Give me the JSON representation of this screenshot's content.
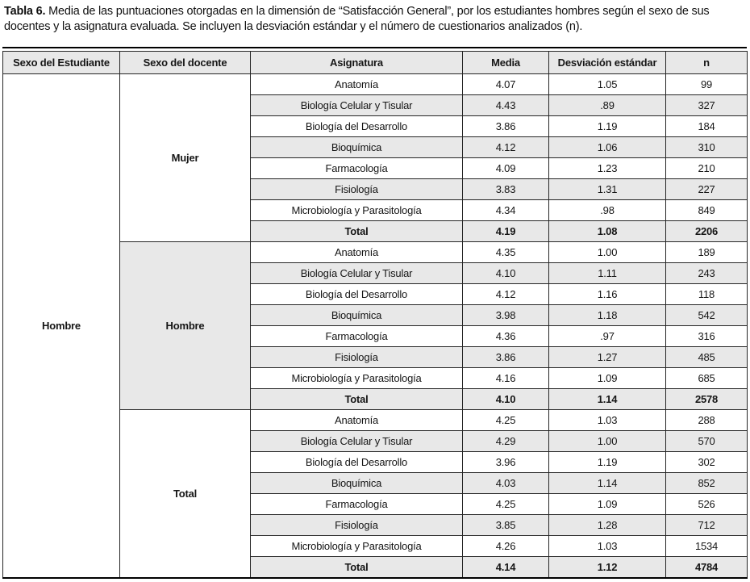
{
  "caption": {
    "label": "Tabla 6.",
    "text": " Media de las puntuaciones otorgadas en la dimensión de “Satisfacción General”, por los estudiantes hombres según el sexo de sus docentes y la asignatura evaluada. Se incluyen la desviación estándar y el número de cuestionarios analizados (n)."
  },
  "colors": {
    "shade": "#e8e8e8",
    "border": "#262626"
  },
  "table": {
    "columns": [
      "Sexo del Estudiante",
      "Sexo del docente",
      "Asignatura",
      "Media",
      "Desviación estándar",
      "n"
    ],
    "student_group": "Hombre",
    "groups": [
      {
        "teacher_sex": "Mujer",
        "shaded": false,
        "rows": [
          {
            "asignatura": "Anatomía",
            "media": "4.07",
            "sd": "1.05",
            "n": "99",
            "is_total": false
          },
          {
            "asignatura": "Biología Celular y Tisular",
            "media": "4.43",
            "sd": ".89",
            "n": "327",
            "is_total": false
          },
          {
            "asignatura": "Biología del Desarrollo",
            "media": "3.86",
            "sd": "1.19",
            "n": "184",
            "is_total": false
          },
          {
            "asignatura": "Bioquímica",
            "media": "4.12",
            "sd": "1.06",
            "n": "310",
            "is_total": false
          },
          {
            "asignatura": "Farmacología",
            "media": "4.09",
            "sd": "1.23",
            "n": "210",
            "is_total": false
          },
          {
            "asignatura": "Fisiología",
            "media": "3.83",
            "sd": "1.31",
            "n": "227",
            "is_total": false
          },
          {
            "asignatura": "Microbiología y Parasitología",
            "media": "4.34",
            "sd": ".98",
            "n": "849",
            "is_total": false
          },
          {
            "asignatura": "Total",
            "media": "4.19",
            "sd": "1.08",
            "n": "2206",
            "is_total": true
          }
        ]
      },
      {
        "teacher_sex": "Hombre",
        "shaded": true,
        "rows": [
          {
            "asignatura": "Anatomía",
            "media": "4.35",
            "sd": "1.00",
            "n": "189",
            "is_total": false
          },
          {
            "asignatura": "Biología Celular y Tisular",
            "media": "4.10",
            "sd": "1.11",
            "n": "243",
            "is_total": false
          },
          {
            "asignatura": "Biología del Desarrollo",
            "media": "4.12",
            "sd": "1.16",
            "n": "118",
            "is_total": false
          },
          {
            "asignatura": "Bioquímica",
            "media": "3.98",
            "sd": "1.18",
            "n": "542",
            "is_total": false
          },
          {
            "asignatura": "Farmacología",
            "media": "4.36",
            "sd": ".97",
            "n": "316",
            "is_total": false
          },
          {
            "asignatura": "Fisiología",
            "media": "3.86",
            "sd": "1.27",
            "n": "485",
            "is_total": false
          },
          {
            "asignatura": "Microbiología y Parasitología",
            "media": "4.16",
            "sd": "1.09",
            "n": "685",
            "is_total": false
          },
          {
            "asignatura": "Total",
            "media": "4.10",
            "sd": "1.14",
            "n": "2578",
            "is_total": true
          }
        ]
      },
      {
        "teacher_sex": "Total",
        "shaded": false,
        "rows": [
          {
            "asignatura": "Anatomía",
            "media": "4.25",
            "sd": "1.03",
            "n": "288",
            "is_total": false
          },
          {
            "asignatura": "Biología Celular y Tisular",
            "media": "4.29",
            "sd": "1.00",
            "n": "570",
            "is_total": false
          },
          {
            "asignatura": "Biología del Desarrollo",
            "media": "3.96",
            "sd": "1.19",
            "n": "302",
            "is_total": false
          },
          {
            "asignatura": "Bioquímica",
            "media": "4.03",
            "sd": "1.14",
            "n": "852",
            "is_total": false
          },
          {
            "asignatura": "Farmacología",
            "media": "4.25",
            "sd": "1.09",
            "n": "526",
            "is_total": false
          },
          {
            "asignatura": "Fisiología",
            "media": "3.85",
            "sd": "1.28",
            "n": "712",
            "is_total": false
          },
          {
            "asignatura": "Microbiología y Parasitología",
            "media": "4.26",
            "sd": "1.03",
            "n": "1534",
            "is_total": false
          },
          {
            "asignatura": "Total",
            "media": "4.14",
            "sd": "1.12",
            "n": "4784",
            "is_total": true
          }
        ]
      }
    ]
  }
}
